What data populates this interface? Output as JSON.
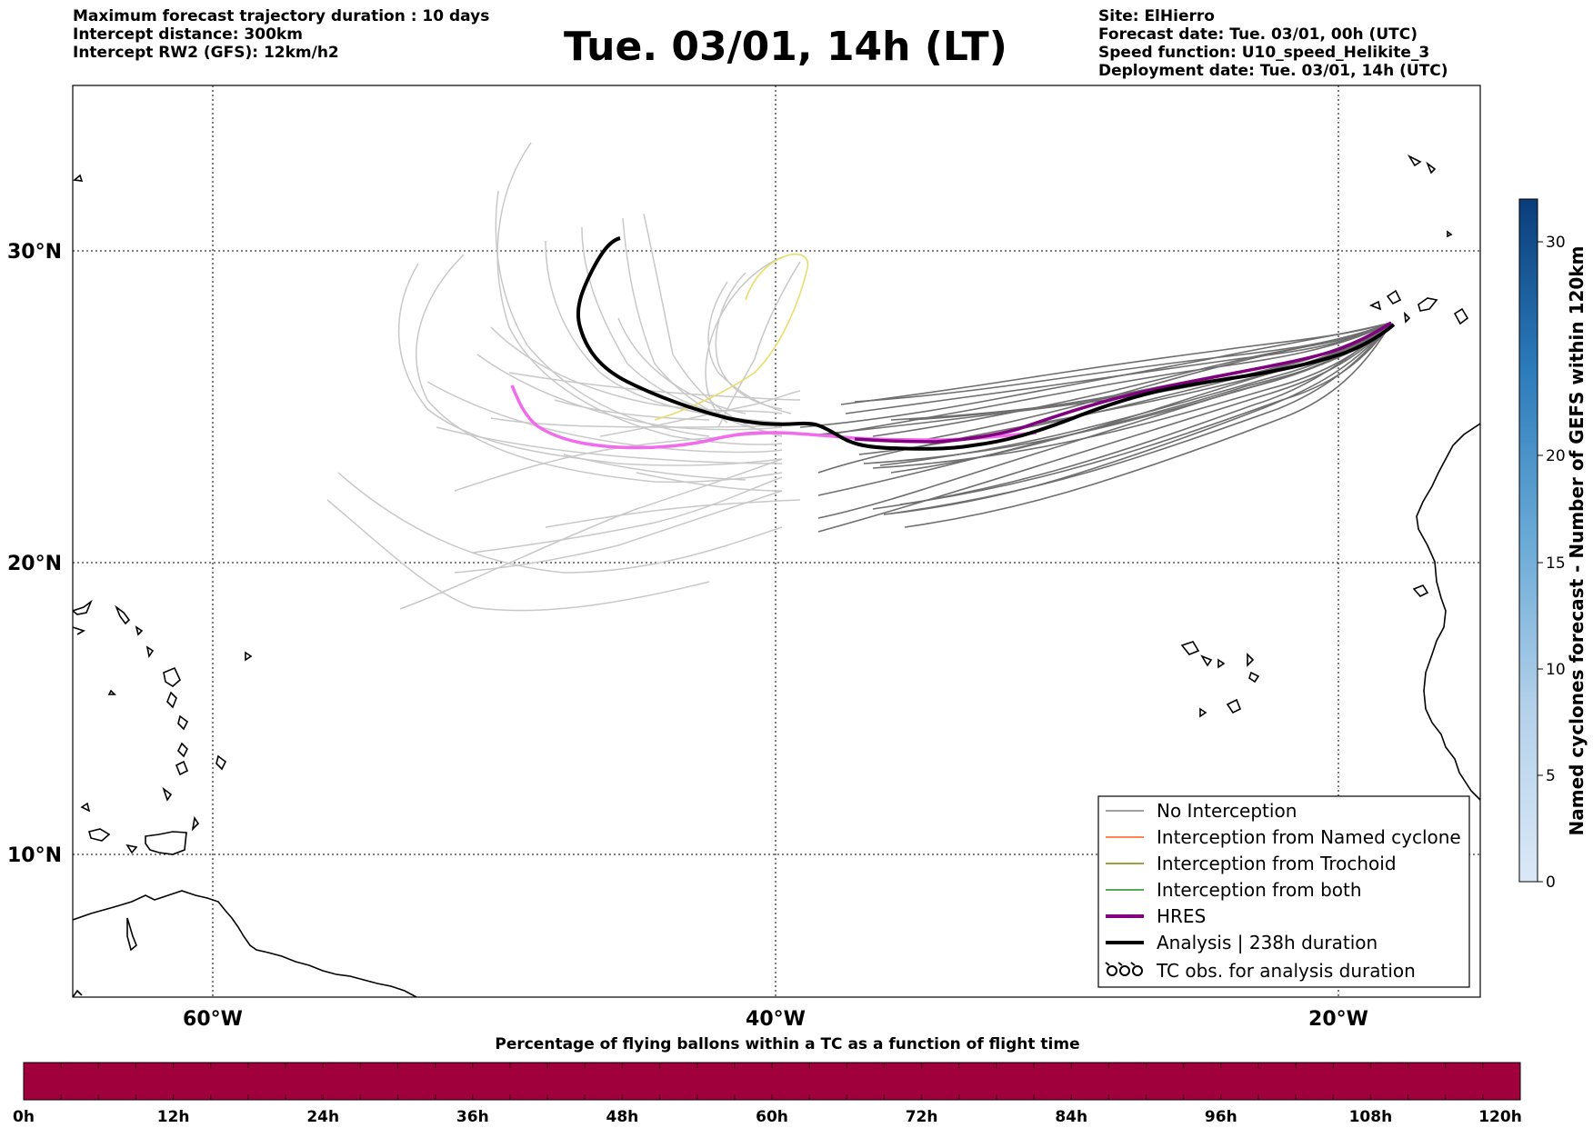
{
  "header_left": {
    "line1": "Maximum forecast trajectory duration : 10 days",
    "line2": "Intercept distance: 300km",
    "line3": "Intercept RW2 (GFS):  12km/h2"
  },
  "title": "Tue. 03/01, 14h (LT)",
  "header_right": {
    "line1": "Site: ElHierro",
    "line2": "Forecast date: Tue. 03/01, 00h (UTC)",
    "line3": "Speed function: U10_speed_Helikite_3",
    "line4": "Deployment date: Tue. 03/01, 14h (UTC)"
  },
  "map": {
    "lat_labels": [
      "30°N",
      "20°N",
      "10°N"
    ],
    "lon_labels": [
      "60°W",
      "40°W",
      "20°W"
    ]
  },
  "legend": {
    "items": [
      {
        "label": "No Interception",
        "color": "#808080"
      },
      {
        "label": "Interception from Named cyclone",
        "color": "#ff5a1f"
      },
      {
        "label": "Interception from Trochoid",
        "color": "#808000"
      },
      {
        "label": "Interception from both",
        "color": "#228b22"
      },
      {
        "label": "HRES",
        "color": "#800080"
      },
      {
        "label": "Analysis | 238h duration",
        "color": "#000000"
      },
      {
        "label": "TC obs. for analysis duration",
        "icon": "tc-symbol-icon"
      }
    ]
  },
  "colorbar_right": {
    "title": "Named cyclones forecast - Number of GEFS within 120km",
    "ticks": [
      "0",
      "5",
      "10",
      "15",
      "20",
      "30"
    ]
  },
  "colorbar_bottom": {
    "title": "Percentage of flying ballons within a TC as a function of flight time",
    "ticks": [
      "0h",
      "12h",
      "24h",
      "36h",
      "48h",
      "60h",
      "72h",
      "84h",
      "96h",
      "108h",
      "120h"
    ],
    "color": "#a0003c"
  }
}
